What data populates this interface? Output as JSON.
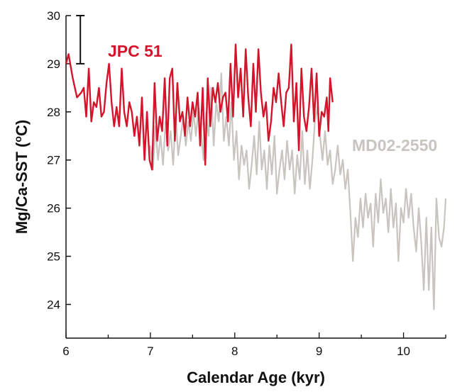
{
  "chart_data": {
    "type": "line",
    "title": "",
    "xlabel": "Calendar Age (kyr)",
    "ylabel_html": "Mg/Ca-SST (",
    "ylabel_sup": "o",
    "ylabel_tail": "C)",
    "xlim": [
      6,
      10.5
    ],
    "ylim": [
      23.3,
      30
    ],
    "x_ticks": [
      6,
      7,
      8,
      9,
      10
    ],
    "y_ticks": [
      24,
      25,
      26,
      27,
      28,
      29,
      30
    ],
    "error_bar": {
      "x": 6.17,
      "low": 29.0,
      "high": 30.0
    },
    "series": [
      {
        "name": "MD02-2550",
        "color": "#c8c4c0",
        "points": [
          [
            7.0,
            27.3
          ],
          [
            7.03,
            26.8
          ],
          [
            7.06,
            27.7
          ],
          [
            7.09,
            27.0
          ],
          [
            7.12,
            27.5
          ],
          [
            7.15,
            26.9
          ],
          [
            7.18,
            27.8
          ],
          [
            7.21,
            27.2
          ],
          [
            7.24,
            27.6
          ],
          [
            7.27,
            26.9
          ],
          [
            7.3,
            27.9
          ],
          [
            7.33,
            27.1
          ],
          [
            7.36,
            27.5
          ],
          [
            7.39,
            27.9
          ],
          [
            7.42,
            27.3
          ],
          [
            7.45,
            27.8
          ],
          [
            7.48,
            27.4
          ],
          [
            7.51,
            28.0
          ],
          [
            7.54,
            27.5
          ],
          [
            7.57,
            28.1
          ],
          [
            7.6,
            27.6
          ],
          [
            7.63,
            27.0
          ],
          [
            7.66,
            28.0
          ],
          [
            7.69,
            27.5
          ],
          [
            7.72,
            28.5
          ],
          [
            7.75,
            27.3
          ],
          [
            7.78,
            28.2
          ],
          [
            7.81,
            27.8
          ],
          [
            7.84,
            28.8
          ],
          [
            7.87,
            27.4
          ],
          [
            7.9,
            27.9
          ],
          [
            7.93,
            27.3
          ],
          [
            7.96,
            28.2
          ],
          [
            7.99,
            27.0
          ],
          [
            8.02,
            27.6
          ],
          [
            8.05,
            26.6
          ],
          [
            8.08,
            27.3
          ],
          [
            8.11,
            26.9
          ],
          [
            8.14,
            27.2
          ],
          [
            8.17,
            26.4
          ],
          [
            8.2,
            26.9
          ],
          [
            8.23,
            27.5
          ],
          [
            8.26,
            26.7
          ],
          [
            8.29,
            27.8
          ],
          [
            8.32,
            26.8
          ],
          [
            8.35,
            27.2
          ],
          [
            8.38,
            26.4
          ],
          [
            8.41,
            27.3
          ],
          [
            8.44,
            26.7
          ],
          [
            8.47,
            27.5
          ],
          [
            8.5,
            26.3
          ],
          [
            8.53,
            26.8
          ],
          [
            8.56,
            27.2
          ],
          [
            8.59,
            26.6
          ],
          [
            8.62,
            27.4
          ],
          [
            8.65,
            26.8
          ],
          [
            8.68,
            27.2
          ],
          [
            8.71,
            26.3
          ],
          [
            8.74,
            27.1
          ],
          [
            8.77,
            26.6
          ],
          [
            8.8,
            27.6
          ],
          [
            8.83,
            26.5
          ],
          [
            8.86,
            27.2
          ],
          [
            8.89,
            26.4
          ],
          [
            8.92,
            27.0
          ],
          [
            8.95,
            27.8
          ],
          [
            8.98,
            28.1
          ],
          [
            9.01,
            27.5
          ],
          [
            9.04,
            27.0
          ],
          [
            9.07,
            27.6
          ],
          [
            9.1,
            26.9
          ],
          [
            9.13,
            27.2
          ],
          [
            9.16,
            26.5
          ],
          [
            9.19,
            26.8
          ],
          [
            9.22,
            27.3
          ],
          [
            9.25,
            26.7
          ],
          [
            9.28,
            27.0
          ],
          [
            9.31,
            26.4
          ],
          [
            9.34,
            26.8
          ],
          [
            9.37,
            25.9
          ],
          [
            9.4,
            24.9
          ],
          [
            9.43,
            25.8
          ],
          [
            9.46,
            25.4
          ],
          [
            9.49,
            26.2
          ],
          [
            9.52,
            25.6
          ],
          [
            9.55,
            26.3
          ],
          [
            9.58,
            25.8
          ],
          [
            9.61,
            26.1
          ],
          [
            9.64,
            25.2
          ],
          [
            9.67,
            26.3
          ],
          [
            9.7,
            25.7
          ],
          [
            9.73,
            26.6
          ],
          [
            9.76,
            25.9
          ],
          [
            9.79,
            26.2
          ],
          [
            9.82,
            25.5
          ],
          [
            9.85,
            26.4
          ],
          [
            9.88,
            25.6
          ],
          [
            9.91,
            26.1
          ],
          [
            9.94,
            24.9
          ],
          [
            9.97,
            26.0
          ],
          [
            10.0,
            25.7
          ],
          [
            10.03,
            26.4
          ],
          [
            10.06,
            25.8
          ],
          [
            10.09,
            26.3
          ],
          [
            10.12,
            25.6
          ],
          [
            10.15,
            25.1
          ],
          [
            10.18,
            26.0
          ],
          [
            10.21,
            25.3
          ],
          [
            10.24,
            24.3
          ],
          [
            10.27,
            25.8
          ],
          [
            10.3,
            24.3
          ],
          [
            10.33,
            25.6
          ],
          [
            10.36,
            23.9
          ],
          [
            10.39,
            26.2
          ],
          [
            10.42,
            25.4
          ],
          [
            10.45,
            25.2
          ],
          [
            10.48,
            25.6
          ],
          [
            10.5,
            26.2
          ]
        ]
      },
      {
        "name": "JPC 51",
        "color": "#d4142a",
        "points": [
          [
            6.0,
            29.0
          ],
          [
            6.03,
            29.2
          ],
          [
            6.08,
            28.7
          ],
          [
            6.13,
            28.3
          ],
          [
            6.18,
            28.4
          ],
          [
            6.21,
            28.5
          ],
          [
            6.24,
            27.9
          ],
          [
            6.27,
            28.9
          ],
          [
            6.3,
            27.8
          ],
          [
            6.33,
            28.2
          ],
          [
            6.36,
            28.1
          ],
          [
            6.39,
            28.5
          ],
          [
            6.42,
            27.9
          ],
          [
            6.45,
            28.0
          ],
          [
            6.48,
            28.6
          ],
          [
            6.51,
            29.0
          ],
          [
            6.54,
            28.2
          ],
          [
            6.57,
            27.7
          ],
          [
            6.6,
            28.1
          ],
          [
            6.63,
            27.7
          ],
          [
            6.66,
            28.9
          ],
          [
            6.69,
            28.0
          ],
          [
            6.72,
            27.7
          ],
          [
            6.75,
            28.2
          ],
          [
            6.78,
            28.0
          ],
          [
            6.81,
            27.5
          ],
          [
            6.84,
            27.9
          ],
          [
            6.87,
            27.3
          ],
          [
            6.9,
            28.3
          ],
          [
            6.93,
            27.0
          ],
          [
            6.96,
            28.0
          ],
          [
            6.99,
            27.0
          ],
          [
            7.02,
            26.8
          ],
          [
            7.05,
            28.6
          ],
          [
            7.08,
            27.4
          ],
          [
            7.11,
            27.9
          ],
          [
            7.14,
            27.6
          ],
          [
            7.17,
            28.7
          ],
          [
            7.2,
            27.3
          ],
          [
            7.23,
            28.7
          ],
          [
            7.26,
            28.9
          ],
          [
            7.29,
            27.4
          ],
          [
            7.32,
            28.6
          ],
          [
            7.35,
            27.8
          ],
          [
            7.38,
            28.0
          ],
          [
            7.41,
            27.5
          ],
          [
            7.44,
            28.3
          ],
          [
            7.47,
            27.7
          ],
          [
            7.5,
            28.2
          ],
          [
            7.53,
            27.9
          ],
          [
            7.56,
            28.4
          ],
          [
            7.59,
            27.3
          ],
          [
            7.62,
            28.5
          ],
          [
            7.65,
            26.9
          ],
          [
            7.68,
            28.7
          ],
          [
            7.71,
            27.7
          ],
          [
            7.74,
            28.5
          ],
          [
            7.77,
            28.2
          ],
          [
            7.8,
            28.6
          ],
          [
            7.83,
            28.0
          ],
          [
            7.86,
            28.3
          ],
          [
            7.89,
            28.4
          ],
          [
            7.92,
            27.8
          ],
          [
            7.95,
            29.0
          ],
          [
            7.98,
            27.9
          ],
          [
            8.01,
            29.4
          ],
          [
            8.04,
            28.3
          ],
          [
            8.07,
            28.9
          ],
          [
            8.1,
            27.9
          ],
          [
            8.13,
            29.3
          ],
          [
            8.16,
            28.3
          ],
          [
            8.19,
            27.7
          ],
          [
            8.22,
            29.0
          ],
          [
            8.25,
            28.0
          ],
          [
            8.28,
            29.3
          ],
          [
            8.31,
            28.4
          ],
          [
            8.34,
            27.9
          ],
          [
            8.37,
            28.2
          ],
          [
            8.4,
            27.4
          ],
          [
            8.43,
            27.8
          ],
          [
            8.46,
            28.5
          ],
          [
            8.49,
            28.2
          ],
          [
            8.52,
            28.8
          ],
          [
            8.55,
            28.2
          ],
          [
            8.58,
            27.7
          ],
          [
            8.61,
            28.4
          ],
          [
            8.64,
            28.5
          ],
          [
            8.67,
            29.4
          ],
          [
            8.7,
            27.8
          ],
          [
            8.73,
            28.6
          ],
          [
            8.76,
            27.2
          ],
          [
            8.79,
            28.9
          ],
          [
            8.82,
            27.9
          ],
          [
            8.85,
            27.6
          ],
          [
            8.88,
            28.1
          ],
          [
            8.91,
            28.9
          ],
          [
            8.94,
            27.8
          ],
          [
            8.97,
            28.8
          ],
          [
            9.0,
            27.5
          ],
          [
            9.03,
            28.0
          ],
          [
            9.06,
            27.9
          ],
          [
            9.09,
            28.3
          ],
          [
            9.11,
            27.6
          ],
          [
            9.13,
            28.7
          ],
          [
            9.16,
            28.2
          ]
        ]
      }
    ]
  }
}
